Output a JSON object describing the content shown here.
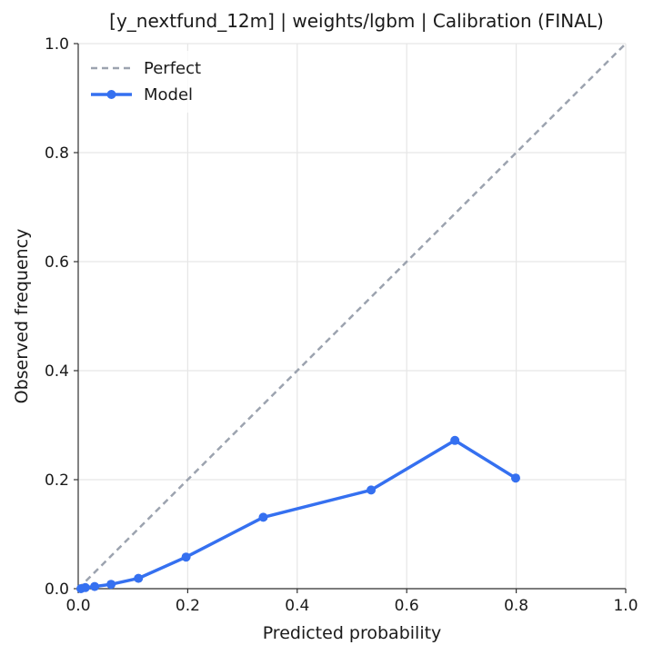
{
  "chart_data": {
    "type": "line",
    "title": "[y_nextfund_12m] | weights/lgbm | Calibration (FINAL)",
    "xlabel": "Predicted probability",
    "ylabel": "Observed frequency",
    "xlim": [
      0.0,
      1.0
    ],
    "ylim": [
      0.0,
      1.0
    ],
    "grid": true,
    "legend_position": "top-left",
    "x_tick_labels": [
      "0.0",
      "0.2",
      "0.4",
      "0.6",
      "0.8",
      "1.0"
    ],
    "y_tick_labels": [
      "0.0",
      "0.2",
      "0.4",
      "0.6",
      "0.8",
      "1.0"
    ],
    "series": [
      {
        "name": "Perfect",
        "style": "dashed",
        "color": "#9ca3af",
        "x": [
          0.0,
          1.0
        ],
        "y": [
          0.0,
          1.0
        ]
      },
      {
        "name": "Model",
        "style": "solid-markers",
        "color": "#3570f0",
        "x": [
          0.005,
          0.013,
          0.03,
          0.06,
          0.11,
          0.197,
          0.338,
          0.535,
          0.688,
          0.799
        ],
        "y": [
          0.0,
          0.002,
          0.004,
          0.008,
          0.019,
          0.058,
          0.131,
          0.181,
          0.272,
          0.203
        ]
      }
    ]
  }
}
